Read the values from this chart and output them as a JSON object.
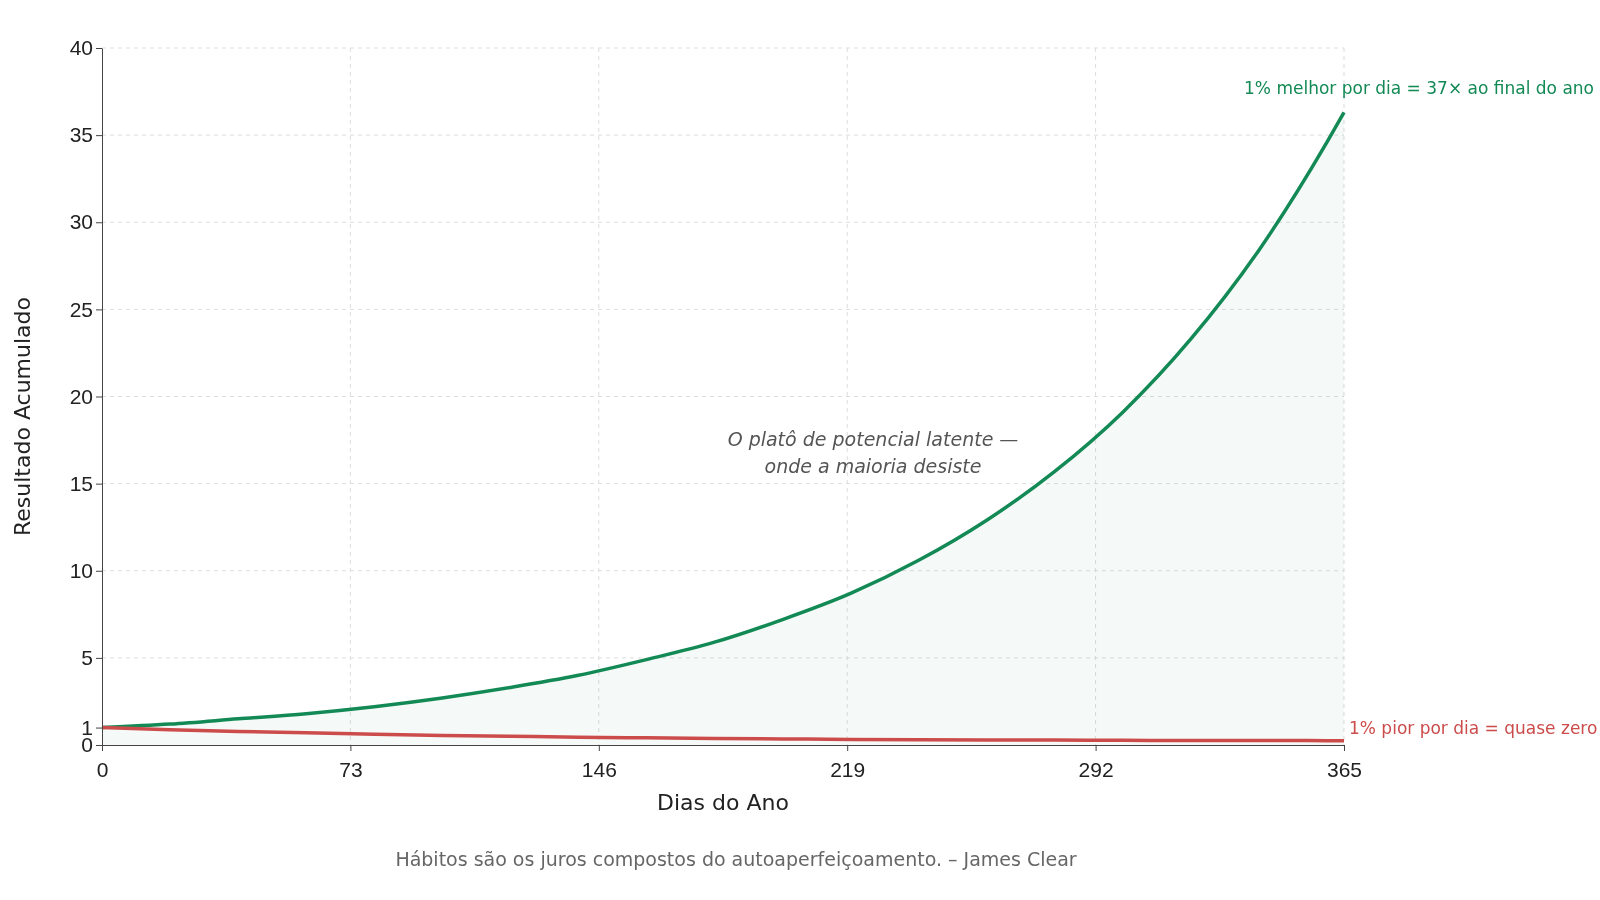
{
  "chart_data": {
    "type": "line",
    "xlabel": "Dias do Ano",
    "ylabel": "Resultado Acumulado",
    "x": [
      0,
      20,
      40,
      60,
      80,
      100,
      120,
      140,
      160,
      180,
      200,
      220,
      240,
      260,
      280,
      300,
      320,
      340,
      360,
      365
    ],
    "series": [
      {
        "name": "1% melhor por dia = 37× ao final do ano",
        "type": "area",
        "color": "#138a55",
        "values": [
          1,
          1.2,
          1.5,
          1.8,
          2.2,
          2.7,
          3.3,
          4,
          4.9,
          5.9,
          7.2,
          8.7,
          10.6,
          12.9,
          15.7,
          19.1,
          23.3,
          28.4,
          34.6,
          36.3
        ]
      },
      {
        "name": "1% pior por dia = quase zero",
        "color": "#cc4c4c",
        "values": [
          1,
          0.88,
          0.78,
          0.7,
          0.62,
          0.55,
          0.5,
          0.45,
          0.41,
          0.38,
          0.35,
          0.32,
          0.3,
          0.29,
          0.28,
          0.27,
          0.26,
          0.26,
          0.25,
          0.25
        ]
      }
    ],
    "xlim": [
      0,
      365
    ],
    "xticks": [
      0,
      73,
      146,
      219,
      292,
      365
    ],
    "ylim": [
      0,
      40
    ],
    "yticks": [
      0,
      1,
      5,
      10,
      15,
      20,
      25,
      30,
      35,
      40
    ],
    "grid": true,
    "line_style": "solid",
    "marker": "none",
    "annotations": [
      "O platô de potencial latente —\nonde a maioria desiste",
      "Hábitos são os juros compostos do autoaperfeiçoamento. – James Clear"
    ]
  }
}
